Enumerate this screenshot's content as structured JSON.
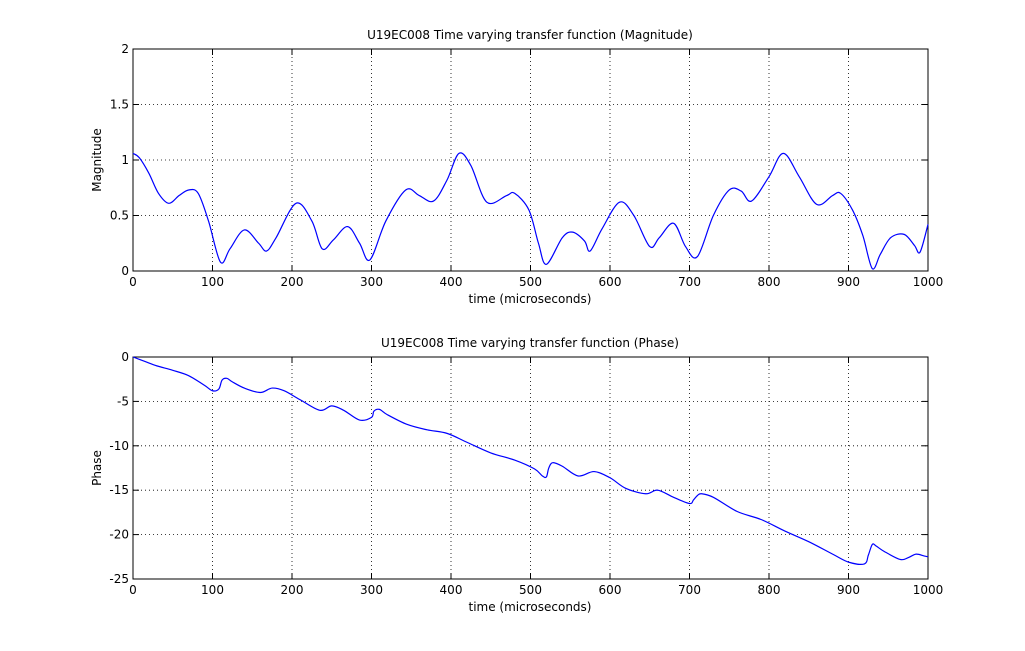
{
  "chart_data": [
    {
      "type": "line",
      "title": "U19EC008 Time varying transfer function (Magnitude)",
      "xlabel": "time (microseconds)",
      "ylabel": "Magnitude",
      "xlim": [
        0,
        1000
      ],
      "ylim": [
        0,
        2
      ],
      "xticks": [
        0,
        100,
        200,
        300,
        400,
        500,
        600,
        700,
        800,
        900,
        1000
      ],
      "yticks": [
        0,
        0.5,
        1,
        1.5,
        2
      ],
      "ytick_labels": [
        "0",
        "0.5",
        "1",
        "1.5",
        "2"
      ],
      "grid": true,
      "series": [
        {
          "color": "#0000ff",
          "x": [
            0,
            8,
            20,
            32,
            45,
            58,
            70,
            82,
            95,
            110,
            122,
            140,
            158,
            168,
            180,
            205,
            225,
            238,
            252,
            270,
            285,
            298,
            318,
            343,
            360,
            378,
            395,
            410,
            425,
            445,
            470,
            480,
            498,
            510,
            520,
            540,
            553,
            568,
            575,
            590,
            612,
            630,
            650,
            662,
            680,
            695,
            710,
            730,
            750,
            765,
            778,
            800,
            818,
            838,
            860,
            880,
            890,
            905,
            918,
            930,
            940,
            953,
            970,
            983,
            990,
            1000
          ],
          "y": [
            1.06,
            1.02,
            0.88,
            0.7,
            0.61,
            0.68,
            0.73,
            0.7,
            0.45,
            0.08,
            0.2,
            0.37,
            0.25,
            0.18,
            0.3,
            0.61,
            0.45,
            0.2,
            0.28,
            0.4,
            0.25,
            0.1,
            0.45,
            0.73,
            0.68,
            0.63,
            0.82,
            1.06,
            0.95,
            0.62,
            0.68,
            0.7,
            0.55,
            0.25,
            0.06,
            0.3,
            0.35,
            0.27,
            0.18,
            0.38,
            0.62,
            0.5,
            0.22,
            0.3,
            0.43,
            0.22,
            0.13,
            0.5,
            0.73,
            0.72,
            0.63,
            0.85,
            1.06,
            0.85,
            0.6,
            0.68,
            0.7,
            0.55,
            0.32,
            0.02,
            0.15,
            0.3,
            0.33,
            0.23,
            0.17,
            0.42
          ]
        }
      ]
    },
    {
      "type": "line",
      "title": "U19EC008 Time varying transfer function (Phase)",
      "xlabel": "time (microseconds)",
      "ylabel": "Phase",
      "xlim": [
        0,
        1000
      ],
      "ylim": [
        -25,
        0
      ],
      "xticks": [
        0,
        100,
        200,
        300,
        400,
        500,
        600,
        700,
        800,
        900,
        1000
      ],
      "yticks": [
        -25,
        -20,
        -15,
        -10,
        -5,
        0
      ],
      "ytick_labels": [
        "-25",
        "-20",
        "-15",
        "-10",
        "-5",
        "0"
      ],
      "grid": true,
      "series": [
        {
          "color": "#0000ff",
          "x": [
            0,
            15,
            30,
            50,
            70,
            90,
            100,
            108,
            112,
            118,
            125,
            140,
            160,
            175,
            190,
            210,
            235,
            250,
            265,
            285,
            300,
            303,
            310,
            320,
            345,
            370,
            395,
            420,
            450,
            480,
            505,
            515,
            520,
            523,
            528,
            540,
            560,
            580,
            600,
            620,
            645,
            660,
            680,
            700,
            705,
            710,
            715,
            730,
            760,
            790,
            820,
            850,
            880,
            900,
            920,
            925,
            930,
            935,
            945,
            965,
            975,
            985,
            995,
            1000
          ],
          "y": [
            0,
            -0.5,
            -1,
            -1.5,
            -2.1,
            -3.2,
            -3.8,
            -3.6,
            -2.6,
            -2.4,
            -2.8,
            -3.5,
            -4,
            -3.5,
            -3.8,
            -4.8,
            -6,
            -5.5,
            -6,
            -7.1,
            -6.8,
            -6.1,
            -5.9,
            -6.5,
            -7.6,
            -8.2,
            -8.6,
            -9.6,
            -10.8,
            -11.6,
            -12.6,
            -13.4,
            -13.5,
            -12.5,
            -11.9,
            -12.3,
            -13.4,
            -12.9,
            -13.6,
            -14.8,
            -15.4,
            -15,
            -15.8,
            -16.5,
            -16.1,
            -15.6,
            -15.4,
            -15.8,
            -17.4,
            -18.3,
            -19.6,
            -20.8,
            -22.2,
            -23.1,
            -23.3,
            -22.3,
            -21.1,
            -21.3,
            -21.9,
            -22.8,
            -22.6,
            -22.2,
            -22.4,
            -22.5
          ]
        }
      ]
    }
  ]
}
